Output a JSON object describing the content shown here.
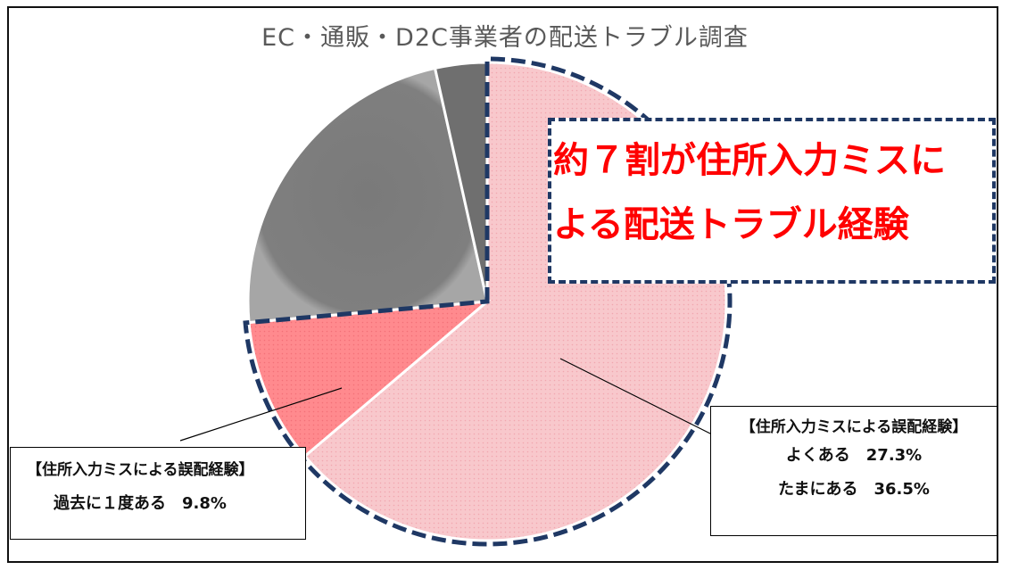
{
  "title": "EC・通販・D2C事業者の配送トラブル調査",
  "callout": {
    "line1": "約７割が住所入力ミスに",
    "line2": "よる配送トラブル経験",
    "text_color": "#FF0000",
    "border_color": "#1F3864"
  },
  "label_left": {
    "header": "【住所入力ミスによる誤配経験】",
    "item_label": "過去に１度ある",
    "item_value": "9.8%"
  },
  "label_right": {
    "header": "【住所入力ミスによる誤配経験】",
    "items": [
      {
        "label": "よくある",
        "value": "27.3%"
      },
      {
        "label": "たまにある",
        "value": "36.5%"
      }
    ]
  },
  "chart_data": {
    "type": "pie",
    "title": "EC・通販・D2C事業者の配送トラブル調査",
    "start": "12 o'clock",
    "direction": "clockwise",
    "slices": [
      {
        "value": 63.8,
        "color": "#F8C8CC"
      },
      {
        "value": 9.8,
        "color": "#FF8A8E"
      },
      {
        "value": 22.9,
        "color": "#7F7F7F"
      },
      {
        "value": 3.5,
        "color": "#6F6F6F"
      }
    ],
    "highlight": "dashed outline around the slices that together cover 73.6% (pink slices)",
    "outline_color": "#1F3864"
  }
}
